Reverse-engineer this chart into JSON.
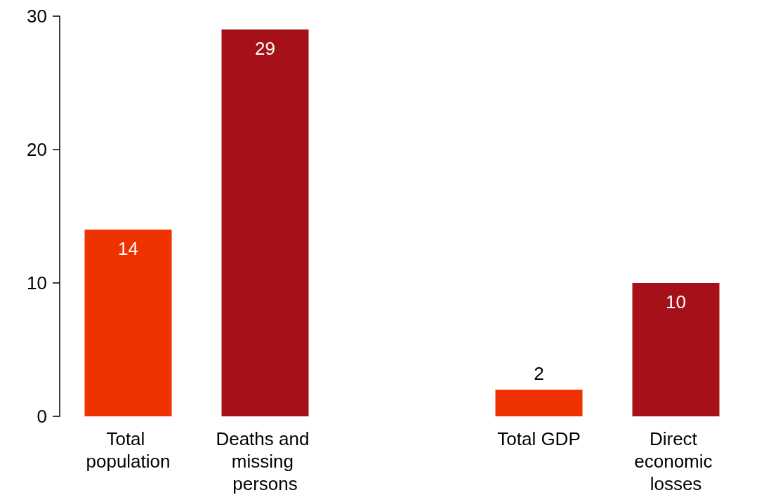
{
  "chart_data": {
    "type": "bar",
    "categories": [
      "Total population",
      "Deaths and missing persons",
      null,
      "Total GDP",
      "Direct economic losses"
    ],
    "values": [
      14,
      29,
      null,
      2,
      10
    ],
    "colors": [
      "#ee3300",
      "#a51019",
      null,
      "#ee3300",
      "#a51019"
    ],
    "ylim": [
      0,
      30
    ],
    "yticks": [
      0,
      10,
      20,
      30
    ],
    "data_labels": true
  }
}
